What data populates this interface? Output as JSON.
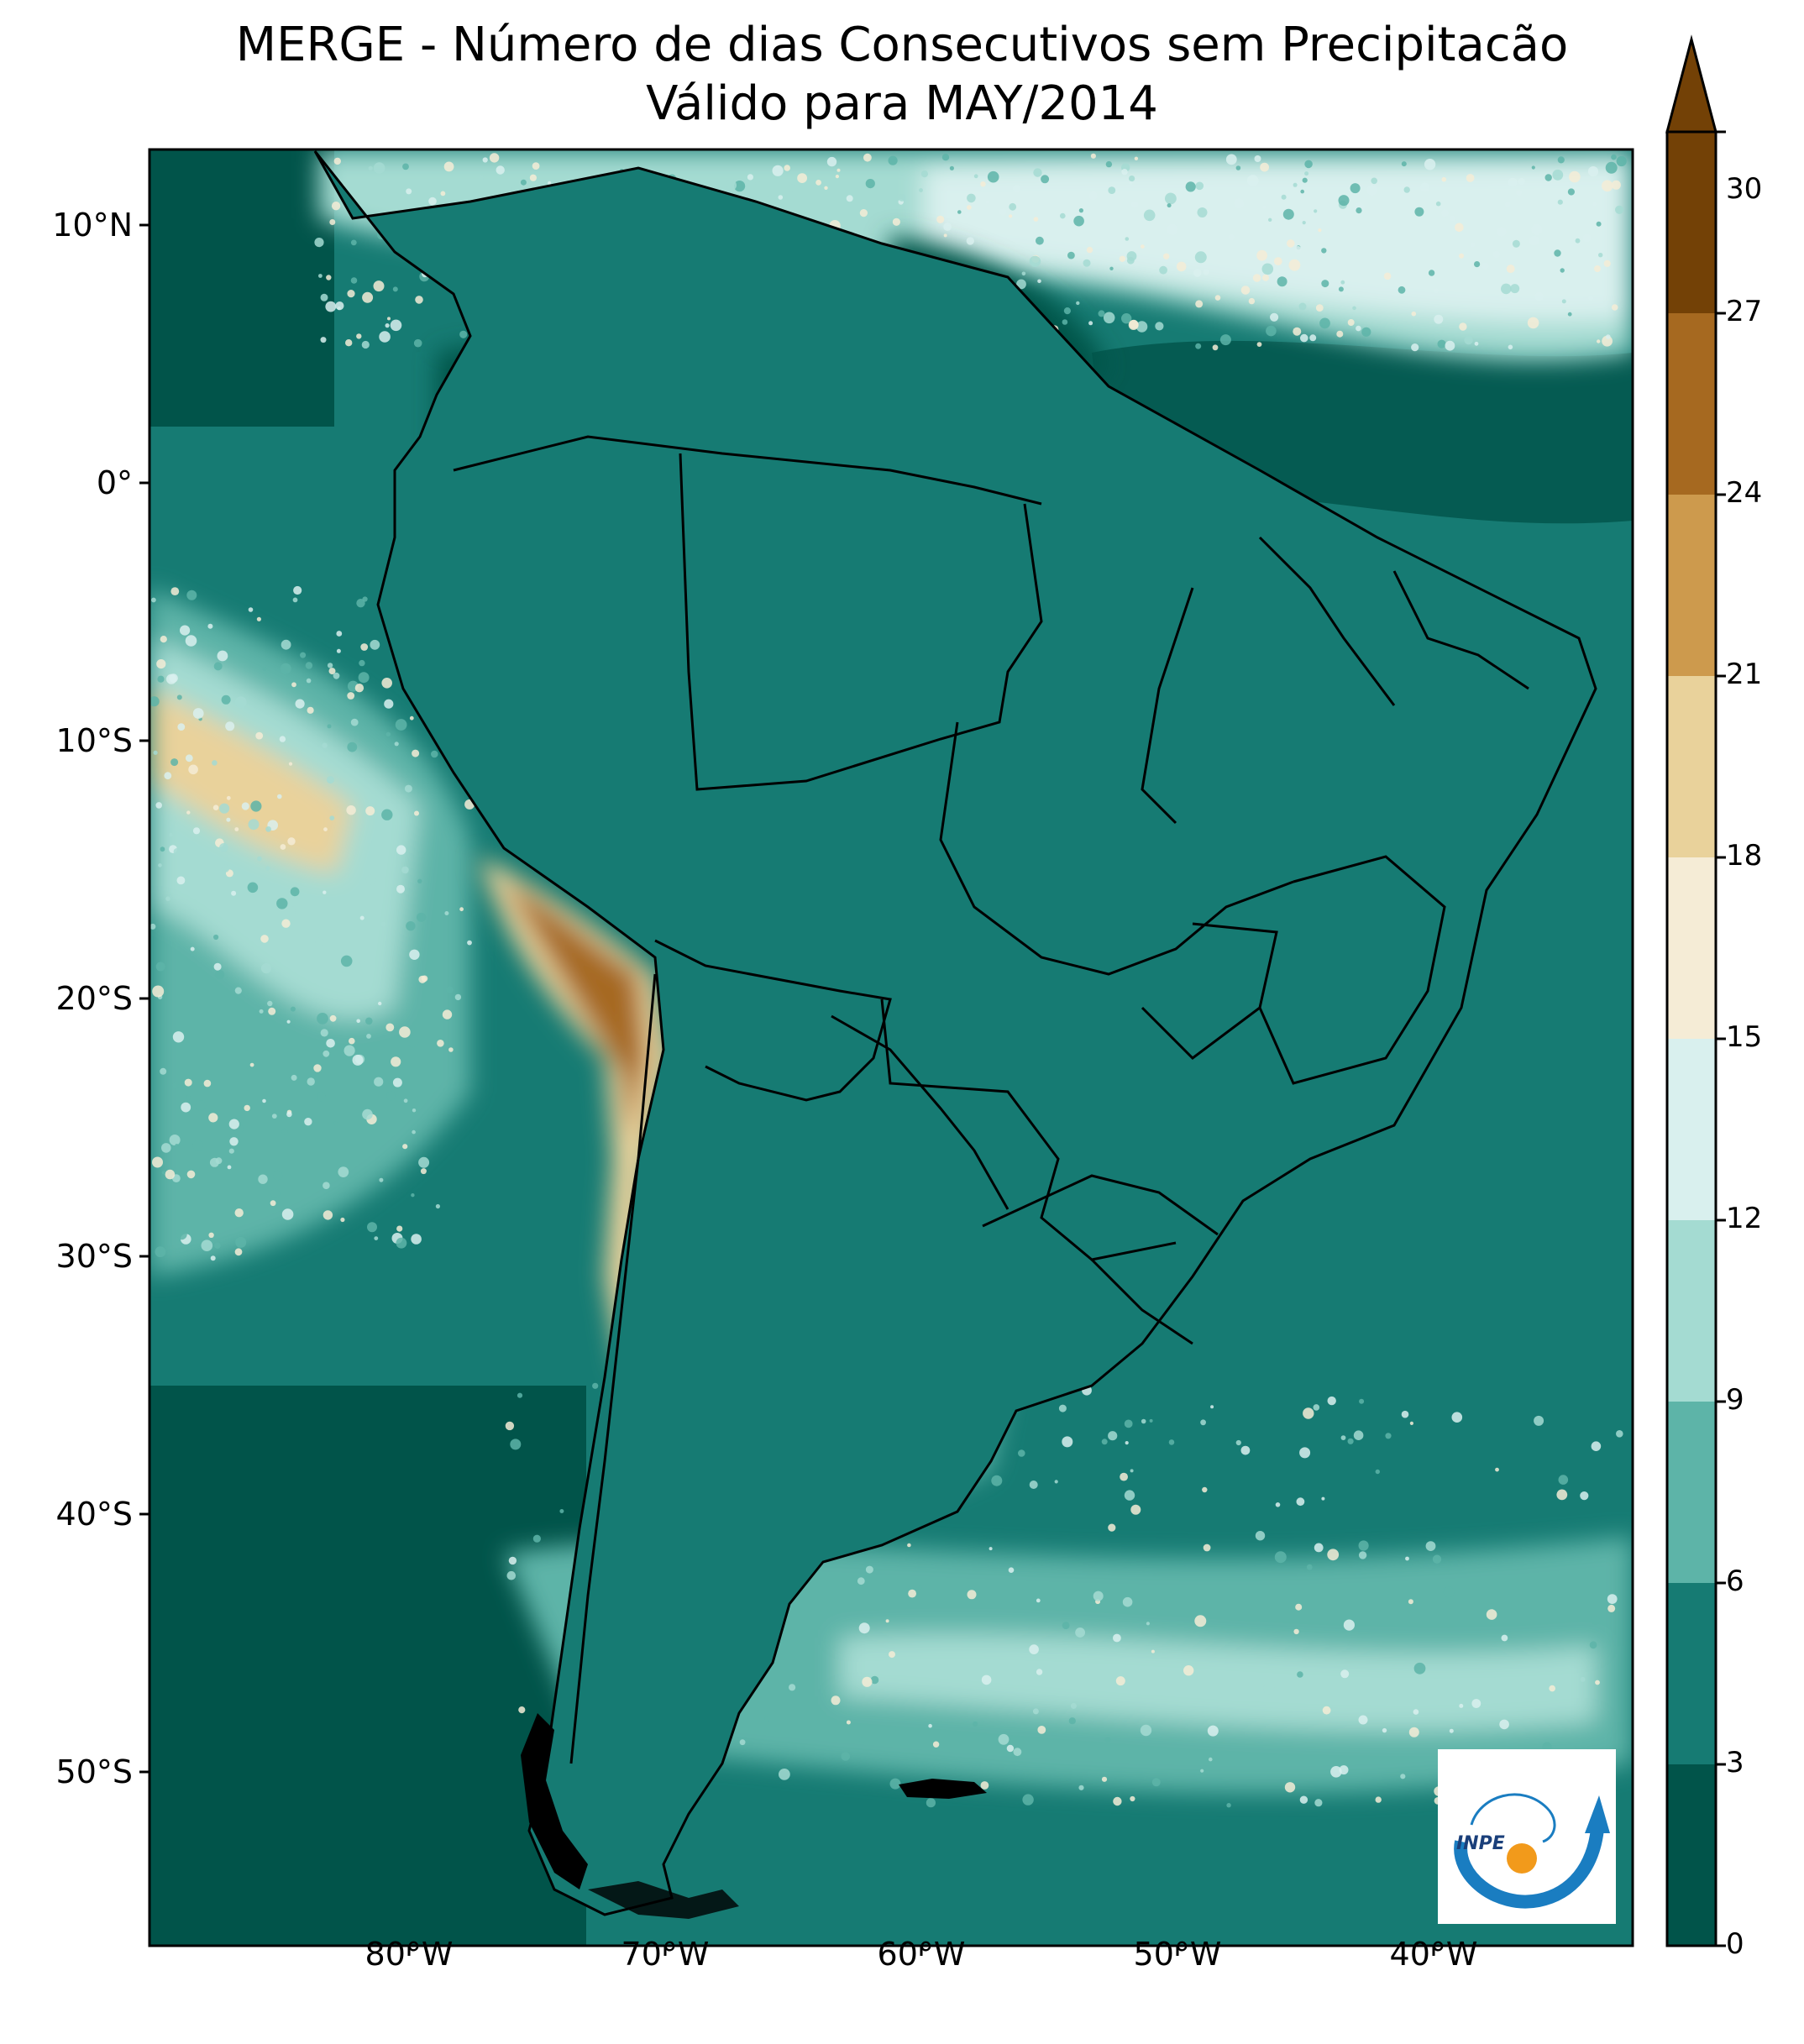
{
  "title": {
    "line1": "MERGE - Número de dias Consecutivos sem Precipitacão",
    "line2": "Válido para MAY/2014"
  },
  "map": {
    "lat_ticks": [
      "10°N",
      "0°",
      "10°S",
      "20°S",
      "30°S",
      "40°S",
      "50°S"
    ],
    "lon_ticks": [
      "80°W",
      "70°W",
      "60°W",
      "50°W",
      "40°W"
    ],
    "extent": {
      "lon_min": -90,
      "lon_max": -32,
      "lat_min": -57,
      "lat_max": 13
    }
  },
  "colorbar": {
    "ticks": [
      "0",
      "3",
      "6",
      "9",
      "12",
      "15",
      "18",
      "21",
      "24",
      "27",
      "30"
    ],
    "colors": [
      "#01544a",
      "#167b73",
      "#5db4a8",
      "#a4dbd2",
      "#d9f0ee",
      "#f5ecd6",
      "#e9d29b",
      "#cd9a4d",
      "#a66920",
      "#734106"
    ],
    "extend": "max"
  },
  "logo": {
    "text": "INPE"
  }
}
